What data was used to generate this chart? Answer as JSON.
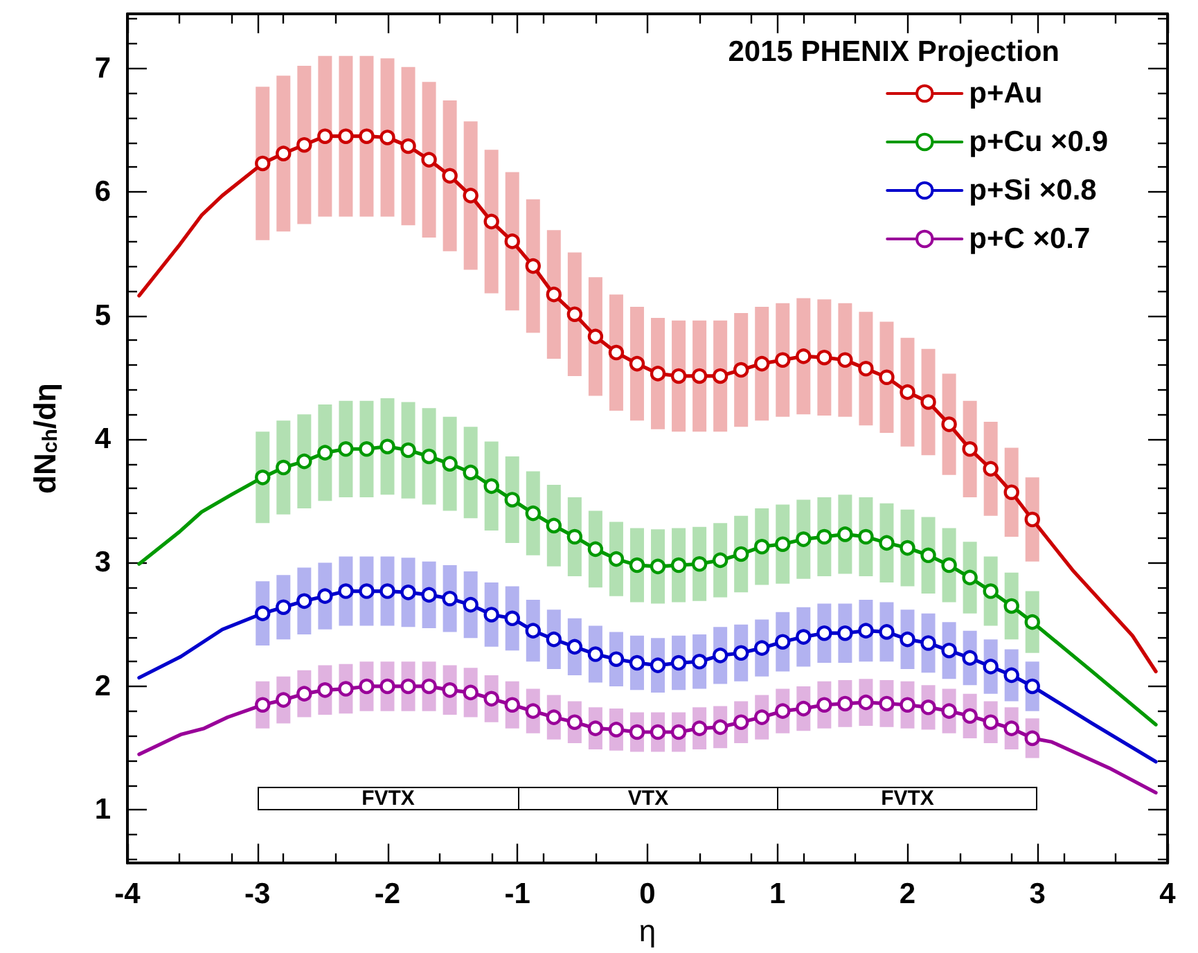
{
  "chart_data": {
    "type": "line",
    "xlabel": "η",
    "ylabel": "dN$_{ch}$/dη",
    "legend_title": "2015 PHENIX Projection",
    "legend": "top right",
    "marker": "circle",
    "xlim": [
      -4,
      4
    ],
    "xticks": [
      -4,
      -3,
      -2,
      -1,
      0,
      1,
      2,
      3,
      4
    ],
    "ylim": [
      0.57,
      7.44
    ],
    "yticks": [
      1,
      2,
      3,
      4,
      5,
      6,
      7
    ],
    "x": [
      -2.96,
      -2.8,
      -2.64,
      -2.48,
      -2.32,
      -2.16,
      -2,
      -1.84,
      -1.68,
      -1.52,
      -1.36,
      -1.2,
      -1.04,
      -0.88,
      -0.72,
      -0.56,
      -0.4,
      -0.24,
      -0.08,
      0.08,
      0.24,
      0.4,
      0.56,
      0.72,
      0.88,
      1.04,
      1.2,
      1.36,
      1.52,
      1.68,
      1.84,
      2,
      2.16,
      2.32,
      2.48,
      2.64,
      2.8,
      2.96
    ],
    "series": [
      {
        "name": "p+Au",
        "color": "#cc0000",
        "values": [
          6.23,
          6.31,
          6.38,
          6.45,
          6.45,
          6.45,
          6.44,
          6.37,
          6.26,
          6.13,
          5.97,
          5.76,
          5.6,
          5.4,
          5.17,
          5.01,
          4.83,
          4.7,
          4.61,
          4.53,
          4.51,
          4.51,
          4.51,
          4.56,
          4.61,
          4.64,
          4.67,
          4.66,
          4.64,
          4.57,
          4.5,
          4.38,
          4.3,
          4.12,
          3.92,
          3.76,
          3.57,
          3.35
        ],
        "errors": [
          0.62,
          0.63,
          0.64,
          0.65,
          0.65,
          0.65,
          0.64,
          0.64,
          0.63,
          0.61,
          0.6,
          0.58,
          0.56,
          0.54,
          0.52,
          0.5,
          0.48,
          0.47,
          0.46,
          0.45,
          0.45,
          0.45,
          0.45,
          0.46,
          0.46,
          0.46,
          0.47,
          0.47,
          0.46,
          0.46,
          0.45,
          0.44,
          0.43,
          0.41,
          0.39,
          0.38,
          0.36,
          0.34
        ]
      },
      {
        "name": "p+Cu ×0.9",
        "color": "#009900",
        "values": [
          3.69,
          3.77,
          3.82,
          3.89,
          3.92,
          3.92,
          3.94,
          3.91,
          3.86,
          3.8,
          3.73,
          3.62,
          3.51,
          3.4,
          3.3,
          3.21,
          3.11,
          3.03,
          2.98,
          2.97,
          2.98,
          2.99,
          3.02,
          3.07,
          3.13,
          3.15,
          3.19,
          3.21,
          3.23,
          3.21,
          3.16,
          3.12,
          3.06,
          2.98,
          2.88,
          2.77,
          2.65,
          2.52
        ],
        "errors": [
          0.37,
          0.38,
          0.38,
          0.39,
          0.39,
          0.39,
          0.39,
          0.39,
          0.39,
          0.38,
          0.37,
          0.36,
          0.35,
          0.34,
          0.33,
          0.32,
          0.31,
          0.3,
          0.3,
          0.3,
          0.3,
          0.3,
          0.3,
          0.31,
          0.31,
          0.32,
          0.32,
          0.32,
          0.32,
          0.32,
          0.32,
          0.31,
          0.31,
          0.3,
          0.29,
          0.28,
          0.27,
          0.25
        ]
      },
      {
        "name": "p+Si ×0.8",
        "color": "#0000cc",
        "values": [
          2.59,
          2.64,
          2.69,
          2.73,
          2.77,
          2.77,
          2.77,
          2.76,
          2.74,
          2.71,
          2.66,
          2.58,
          2.55,
          2.45,
          2.38,
          2.32,
          2.26,
          2.22,
          2.19,
          2.17,
          2.19,
          2.2,
          2.25,
          2.27,
          2.31,
          2.36,
          2.4,
          2.43,
          2.43,
          2.45,
          2.44,
          2.38,
          2.35,
          2.29,
          2.23,
          2.16,
          2.09,
          2.0
        ],
        "errors": [
          0.26,
          0.26,
          0.27,
          0.27,
          0.28,
          0.28,
          0.28,
          0.28,
          0.27,
          0.27,
          0.27,
          0.26,
          0.26,
          0.25,
          0.24,
          0.23,
          0.23,
          0.22,
          0.22,
          0.22,
          0.22,
          0.22,
          0.23,
          0.23,
          0.23,
          0.24,
          0.24,
          0.24,
          0.24,
          0.25,
          0.24,
          0.24,
          0.24,
          0.23,
          0.22,
          0.22,
          0.21,
          0.2
        ]
      },
      {
        "name": "p+C ×0.7",
        "color": "#990099",
        "values": [
          1.85,
          1.89,
          1.94,
          1.97,
          1.98,
          2.0,
          2.0,
          2.0,
          2.0,
          1.97,
          1.95,
          1.9,
          1.85,
          1.8,
          1.75,
          1.71,
          1.66,
          1.65,
          1.63,
          1.63,
          1.63,
          1.66,
          1.67,
          1.71,
          1.75,
          1.8,
          1.82,
          1.85,
          1.86,
          1.87,
          1.86,
          1.85,
          1.83,
          1.8,
          1.76,
          1.71,
          1.66,
          1.58
        ],
        "errors": [
          0.19,
          0.19,
          0.19,
          0.2,
          0.2,
          0.2,
          0.2,
          0.2,
          0.2,
          0.2,
          0.2,
          0.19,
          0.19,
          0.18,
          0.18,
          0.17,
          0.17,
          0.17,
          0.16,
          0.16,
          0.16,
          0.17,
          0.17,
          0.17,
          0.18,
          0.18,
          0.18,
          0.19,
          0.19,
          0.19,
          0.19,
          0.19,
          0.18,
          0.18,
          0.18,
          0.17,
          0.17,
          0.16
        ]
      },
      {
        "color": "#cc0000",
        "marker": "none",
        "x": [
          -3.91,
          -3.6,
          -3.43,
          -3.27,
          -2.96
        ],
        "values": [
          5.16,
          5.57,
          5.81,
          5.97,
          6.23
        ]
      },
      {
        "color": "#cc0000",
        "marker": "none",
        "x": [
          2.96,
          3.27,
          3.73,
          3.91
        ],
        "values": [
          3.35,
          2.94,
          2.41,
          2.12
        ]
      },
      {
        "color": "#009900",
        "marker": "none",
        "x": [
          -3.91,
          -3.6,
          -3.43,
          -3.2,
          -2.96
        ],
        "values": [
          2.99,
          3.25,
          3.41,
          3.55,
          3.69
        ]
      },
      {
        "color": "#009900",
        "marker": "none",
        "x": [
          2.96,
          3.42,
          3.91
        ],
        "values": [
          2.52,
          2.12,
          1.69
        ]
      },
      {
        "color": "#0000cc",
        "marker": "none",
        "x": [
          -3.91,
          -3.59,
          -3.27,
          -2.96
        ],
        "values": [
          2.07,
          2.24,
          2.46,
          2.59
        ]
      },
      {
        "color": "#0000cc",
        "marker": "none",
        "x": [
          2.96,
          3.42,
          3.91
        ],
        "values": [
          2.0,
          1.7,
          1.39
        ]
      },
      {
        "color": "#990099",
        "marker": "none",
        "x": [
          -3.91,
          -3.59,
          -3.41,
          -3.23,
          -2.96
        ],
        "values": [
          1.45,
          1.61,
          1.66,
          1.75,
          1.85
        ]
      },
      {
        "color": "#990099",
        "marker": "none",
        "x": [
          2.96,
          3.11,
          3.55,
          3.91
        ],
        "values": [
          1.58,
          1.55,
          1.34,
          1.14
        ]
      }
    ],
    "annotations": [
      "FVTX",
      "VTX",
      "FVTX"
    ]
  }
}
